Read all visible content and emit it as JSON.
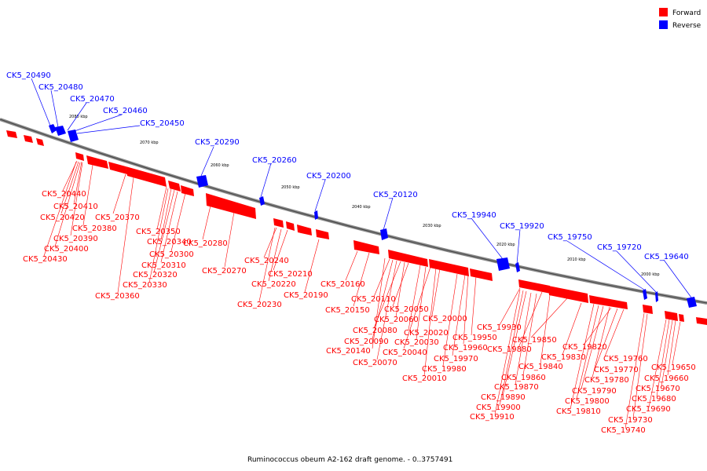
{
  "legend": {
    "forward_label": "Forward",
    "reverse_label": "Reverse",
    "forward_color": "#ff0000",
    "reverse_color": "#0000ff"
  },
  "caption": "Ruminococcus obeum A2-162 draft genome. - 0..3757491",
  "ticks": [
    "2080 kbp",
    "2070 kbp",
    "2060 kbp",
    "2050 kbp",
    "2040 kbp",
    "2030 kbp",
    "2020 kbp",
    "2010 kbp",
    "2000 kbp"
  ],
  "reverse_labels": [
    "CK5_20490",
    "CK5_20480",
    "CK5_20470",
    "CK5_20460",
    "CK5_20450",
    "CK5_20290",
    "CK5_20260",
    "CK5_20200",
    "CK5_20120",
    "CK5_19940",
    "CK5_19920",
    "CK5_19750",
    "CK5_19720",
    "CK5_19640"
  ],
  "forward_labels": [
    "CK5_20440",
    "CK5_20410",
    "CK5_20420",
    "CK5_20380",
    "CK5_20370",
    "CK5_20390",
    "CK5_20400",
    "CK5_20430",
    "CK5_20350",
    "CK5_20340",
    "CK5_20300",
    "CK5_20310",
    "CK5_20320",
    "CK5_20330",
    "CK5_20360",
    "CK5_20280",
    "CK5_20270",
    "CK5_20240",
    "CK5_20210",
    "CK5_20220",
    "CK5_20190",
    "CK5_20230",
    "CK5_20160",
    "CK5_20110",
    "CK5_20150",
    "CK5_20050",
    "CK5_20060",
    "CK5_20000",
    "CK5_20080",
    "CK5_20020",
    "CK5_20090",
    "CK5_20030",
    "CK5_19950",
    "CK5_20140",
    "CK5_20040",
    "CK5_19960",
    "CK5_20070",
    "CK5_19970",
    "CK5_19980",
    "CK5_20010",
    "CK5_19930",
    "CK5_19850",
    "CK5_19880",
    "CK5_19820",
    "CK5_19830",
    "CK5_19840",
    "CK5_19860",
    "CK5_19870",
    "CK5_19890",
    "CK5_19900",
    "CK5_19910",
    "CK5_19760",
    "CK5_19650",
    "CK5_19770",
    "CK5_19660",
    "CK5_19780",
    "CK5_19670",
    "CK5_19790",
    "CK5_19680",
    "CK5_19800",
    "CK5_19690",
    "CK5_19810",
    "CK5_19730",
    "CK5_19740"
  ]
}
